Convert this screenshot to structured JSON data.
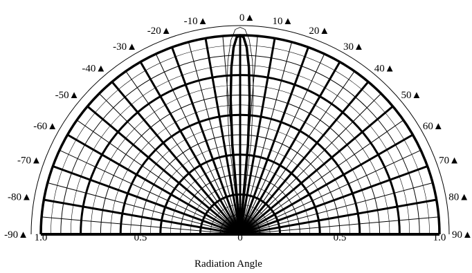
{
  "chart_data": {
    "type": "polar",
    "title": "",
    "xlabel": "Radiation Angle",
    "angle_ticks": [
      -90,
      -80,
      -70,
      -60,
      -50,
      -40,
      -30,
      -20,
      -10,
      0,
      10,
      20,
      30,
      40,
      50,
      60,
      70,
      80,
      90
    ],
    "angle_tick_labels": [
      "-90▲",
      "-80▲",
      "-70▲",
      "-60▲",
      "-50▲",
      "-40▲",
      "-30▲",
      "-20▲",
      "-10▲",
      "0▲",
      "10▲",
      "20▲",
      "30▲",
      "40▲",
      "50▲",
      "60▲",
      "70▲",
      "80▲",
      "90▲"
    ],
    "radial_ticks": [
      1.0,
      0.5,
      0,
      0.5,
      1.0
    ],
    "radial_tick_labels": [
      "1.0",
      "0.5",
      "0",
      "0.5",
      "1.0"
    ],
    "rlim": [
      0,
      1.0
    ],
    "thetalim": [
      -90,
      90
    ],
    "grid": true,
    "series": [
      {
        "theta": [
          -6,
          -5,
          -4,
          -3,
          -2,
          -1,
          0,
          1,
          2,
          3,
          4,
          5,
          6
        ],
        "r": [
          0.0,
          0.45,
          0.68,
          0.84,
          0.94,
          0.99,
          1.0,
          0.99,
          0.94,
          0.84,
          0.68,
          0.45,
          0.0
        ]
      }
    ]
  }
}
